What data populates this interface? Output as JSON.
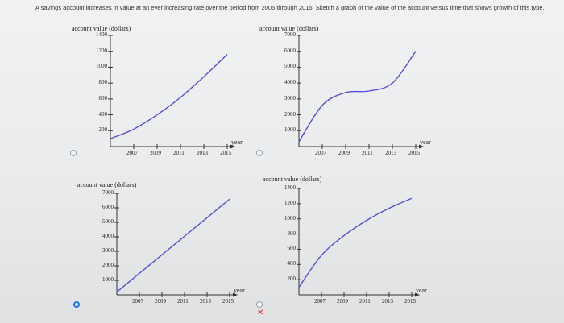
{
  "question": {
    "text": "A savings account increases in value at an ever increasing rate over the period from 2005 through 2015. Sketch a graph of the value of the account versus time that shows growth of this type."
  },
  "choices": [
    {
      "id": "A",
      "selected": false,
      "marked_wrong": false,
      "chart_data": {
        "type": "line",
        "ylabel": "account value (dollars)",
        "xlabel": "year",
        "x_ticks": [
          "2007",
          "2009",
          "2011",
          "2013",
          "2015"
        ],
        "y_ticks": [
          "1400",
          "1200",
          "1000",
          "800",
          "600",
          "400",
          "200"
        ],
        "xlim": [
          2005,
          2015
        ],
        "ylim": [
          0,
          1400
        ],
        "series": [
          {
            "x": [
              2005,
              2007,
              2009,
              2011,
              2013,
              2015
            ],
            "y": [
              100,
              220,
              400,
              620,
              880,
              1160
            ]
          }
        ]
      }
    },
    {
      "id": "B",
      "selected": false,
      "marked_wrong": false,
      "chart_data": {
        "type": "line",
        "ylabel": "account value (dollars)",
        "xlabel": "year",
        "x_ticks": [
          "2007",
          "2009",
          "2011",
          "2013",
          "2015"
        ],
        "y_ticks": [
          "7000",
          "6000",
          "5000",
          "4000",
          "3000",
          "2000",
          "1000"
        ],
        "xlim": [
          2005,
          2015
        ],
        "ylim": [
          0,
          7000
        ],
        "series": [
          {
            "x": [
              2005,
              2007,
              2009,
              2011,
              2013,
              2015
            ],
            "y": [
              300,
              2600,
              3400,
              3500,
              4000,
              6000
            ]
          }
        ]
      }
    },
    {
      "id": "C",
      "selected": true,
      "marked_wrong": false,
      "chart_data": {
        "type": "line",
        "ylabel": "account value (dollars)",
        "xlabel": "year",
        "x_ticks": [
          "2007",
          "2009",
          "2011",
          "2013",
          "2015"
        ],
        "y_ticks": [
          "7000",
          "6000",
          "5000",
          "4000",
          "3000",
          "2000",
          "1000"
        ],
        "xlim": [
          2005,
          2015
        ],
        "ylim": [
          0,
          7000
        ],
        "series": [
          {
            "x": [
              2005,
              2015
            ],
            "y": [
              200,
              6600
            ]
          }
        ]
      }
    },
    {
      "id": "D",
      "selected": false,
      "marked_wrong": true,
      "chart_data": {
        "type": "line",
        "ylabel": "account value (dollars)",
        "xlabel": "year",
        "x_ticks": [
          "2007",
          "2009",
          "2011",
          "2013",
          "2015"
        ],
        "y_ticks": [
          "1400",
          "1200",
          "1000",
          "800",
          "600",
          "400",
          "200"
        ],
        "xlim": [
          2005,
          2015
        ],
        "ylim": [
          0,
          1400
        ],
        "series": [
          {
            "x": [
              2005,
              2007,
              2009,
              2011,
              2013,
              2015
            ],
            "y": [
              100,
              520,
              780,
              980,
              1140,
              1270
            ]
          }
        ]
      }
    }
  ],
  "wrong_symbol": "✕",
  "colors": {
    "line": "#5b4fd6",
    "axis": "#333333",
    "selected_radio": "#1a73e8",
    "wrong": "#d93025"
  }
}
